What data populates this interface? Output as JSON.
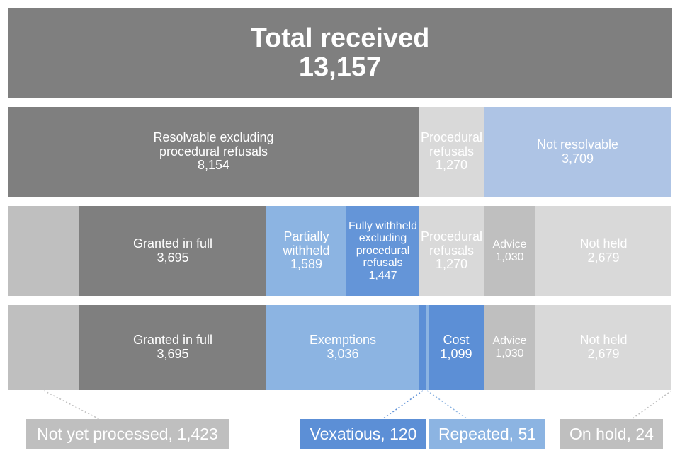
{
  "total": {
    "title": "Total received",
    "value": "13,157"
  },
  "row1": [
    {
      "label": "Resolvable excluding\nprocedural refusals",
      "value": "8,154"
    },
    {
      "label": "Procedural\nrefusals",
      "value": "1,270"
    },
    {
      "label": "Not resolvable",
      "value": "3,709"
    }
  ],
  "row2": [
    {
      "label": "Granted in full",
      "value": "3,695"
    },
    {
      "label": "Partially\nwithheld",
      "value": "1,589"
    },
    {
      "label": "Fully withheld\nexcluding\nprocedural\nrefusals",
      "value": "1,447"
    },
    {
      "label": "Procedural\nrefusals",
      "value": "1,270"
    },
    {
      "label": "Advice",
      "value": "1,030"
    },
    {
      "label": "Not held",
      "value": "2,679"
    }
  ],
  "row3": [
    {
      "label": "Granted in full",
      "value": "3,695"
    },
    {
      "label": "Exemptions",
      "value": "3,036"
    },
    {
      "label": "Cost",
      "value": "1,099"
    },
    {
      "label": "Advice",
      "value": "1,030"
    },
    {
      "label": "Not held",
      "value": "2,679"
    }
  ],
  "notes": {
    "not_yet_processed": "Not yet processed, 1,423",
    "vexatious": "Vexatious, 120",
    "repeated": "Repeated, 51",
    "on_hold": "On hold, 24"
  },
  "colors": {
    "dark_grey": "#7f7f7f",
    "mid_grey": "#bfbfbf",
    "light_grey": "#d9d9d9",
    "pale_blue": "#aec4e5",
    "light_blue": "#8cb4e2",
    "blue": "#6495d8",
    "strong_blue": "#5c8fd6"
  }
}
